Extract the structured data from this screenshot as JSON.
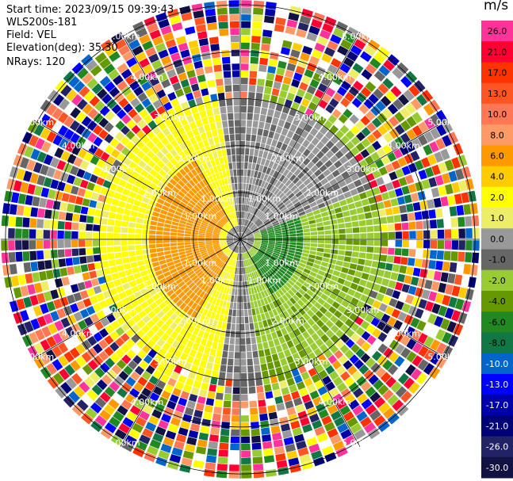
{
  "info": {
    "start_time": "Start time: 2023/09/15 09:39:43",
    "site": "WLS200s-181",
    "field": "Field: VEL",
    "elevation": "Elevation(deg): 35.30",
    "nrays": "NRays: 120"
  },
  "colorbar": {
    "unit": "m/s",
    "ticks": [
      "26.0",
      "21.0",
      "17.0",
      "13.0",
      "10.0",
      "8.0",
      "6.0",
      "4.0",
      "2.0",
      "1.0",
      "0.0",
      "-1.0",
      "-2.0",
      "-4.0",
      "-6.0",
      "-8.0",
      "-10.0",
      "-13.0",
      "-17.0",
      "-21.0",
      "-26.0",
      "-30.0"
    ],
    "colors": [
      "#ff3399",
      "#ff0033",
      "#ff3300",
      "#ff5522",
      "#ff7755",
      "#ff9966",
      "#ff9900",
      "#ffcc00",
      "#ffff00",
      "#eeee66",
      "#999999",
      "#666666",
      "#99cc33",
      "#669900",
      "#228822",
      "#117744",
      "#0066cc",
      "#0000ff",
      "#0000aa",
      "#000077",
      "#222266",
      "#111144"
    ],
    "tick_text_colors": [
      "#000000",
      "#000000",
      "#000000",
      "#000000",
      "#000000",
      "#000000",
      "#000000",
      "#000000",
      "#000000",
      "#000000",
      "#000000",
      "#000000",
      "#000000",
      "#000000",
      "#000000",
      "#000000",
      "#ffffff",
      "#ffffff",
      "#ffffff",
      "#ffffff",
      "#ffffff",
      "#ffffff"
    ]
  },
  "chart_data": {
    "type": "ppi",
    "field": "VEL",
    "units": "m/s",
    "nrays": 120,
    "range_rings_km": [
      1.0,
      2.0,
      3.0,
      4.0,
      5.0
    ],
    "ring_labels": [
      "1.00km",
      "2.00km",
      "3.00km",
      "4.00km",
      "5.00km"
    ],
    "approx_velocity_pattern": [
      {
        "region": "west sector, 0.5–2 km",
        "velocity_ms": 6.0
      },
      {
        "region": "west half, 0–3 km",
        "velocity_ms": 2.0
      },
      {
        "region": "east half, 0–3 km",
        "velocity_ms": -2.0
      },
      {
        "region": "east sector, 0.5–1.5 km",
        "velocity_ms": -6.0
      },
      {
        "region": "north-east, 1–3 km",
        "velocity_ms": 0.0
      },
      {
        "region": "beyond ~3.5 km",
        "velocity_ms": "noise"
      }
    ]
  }
}
